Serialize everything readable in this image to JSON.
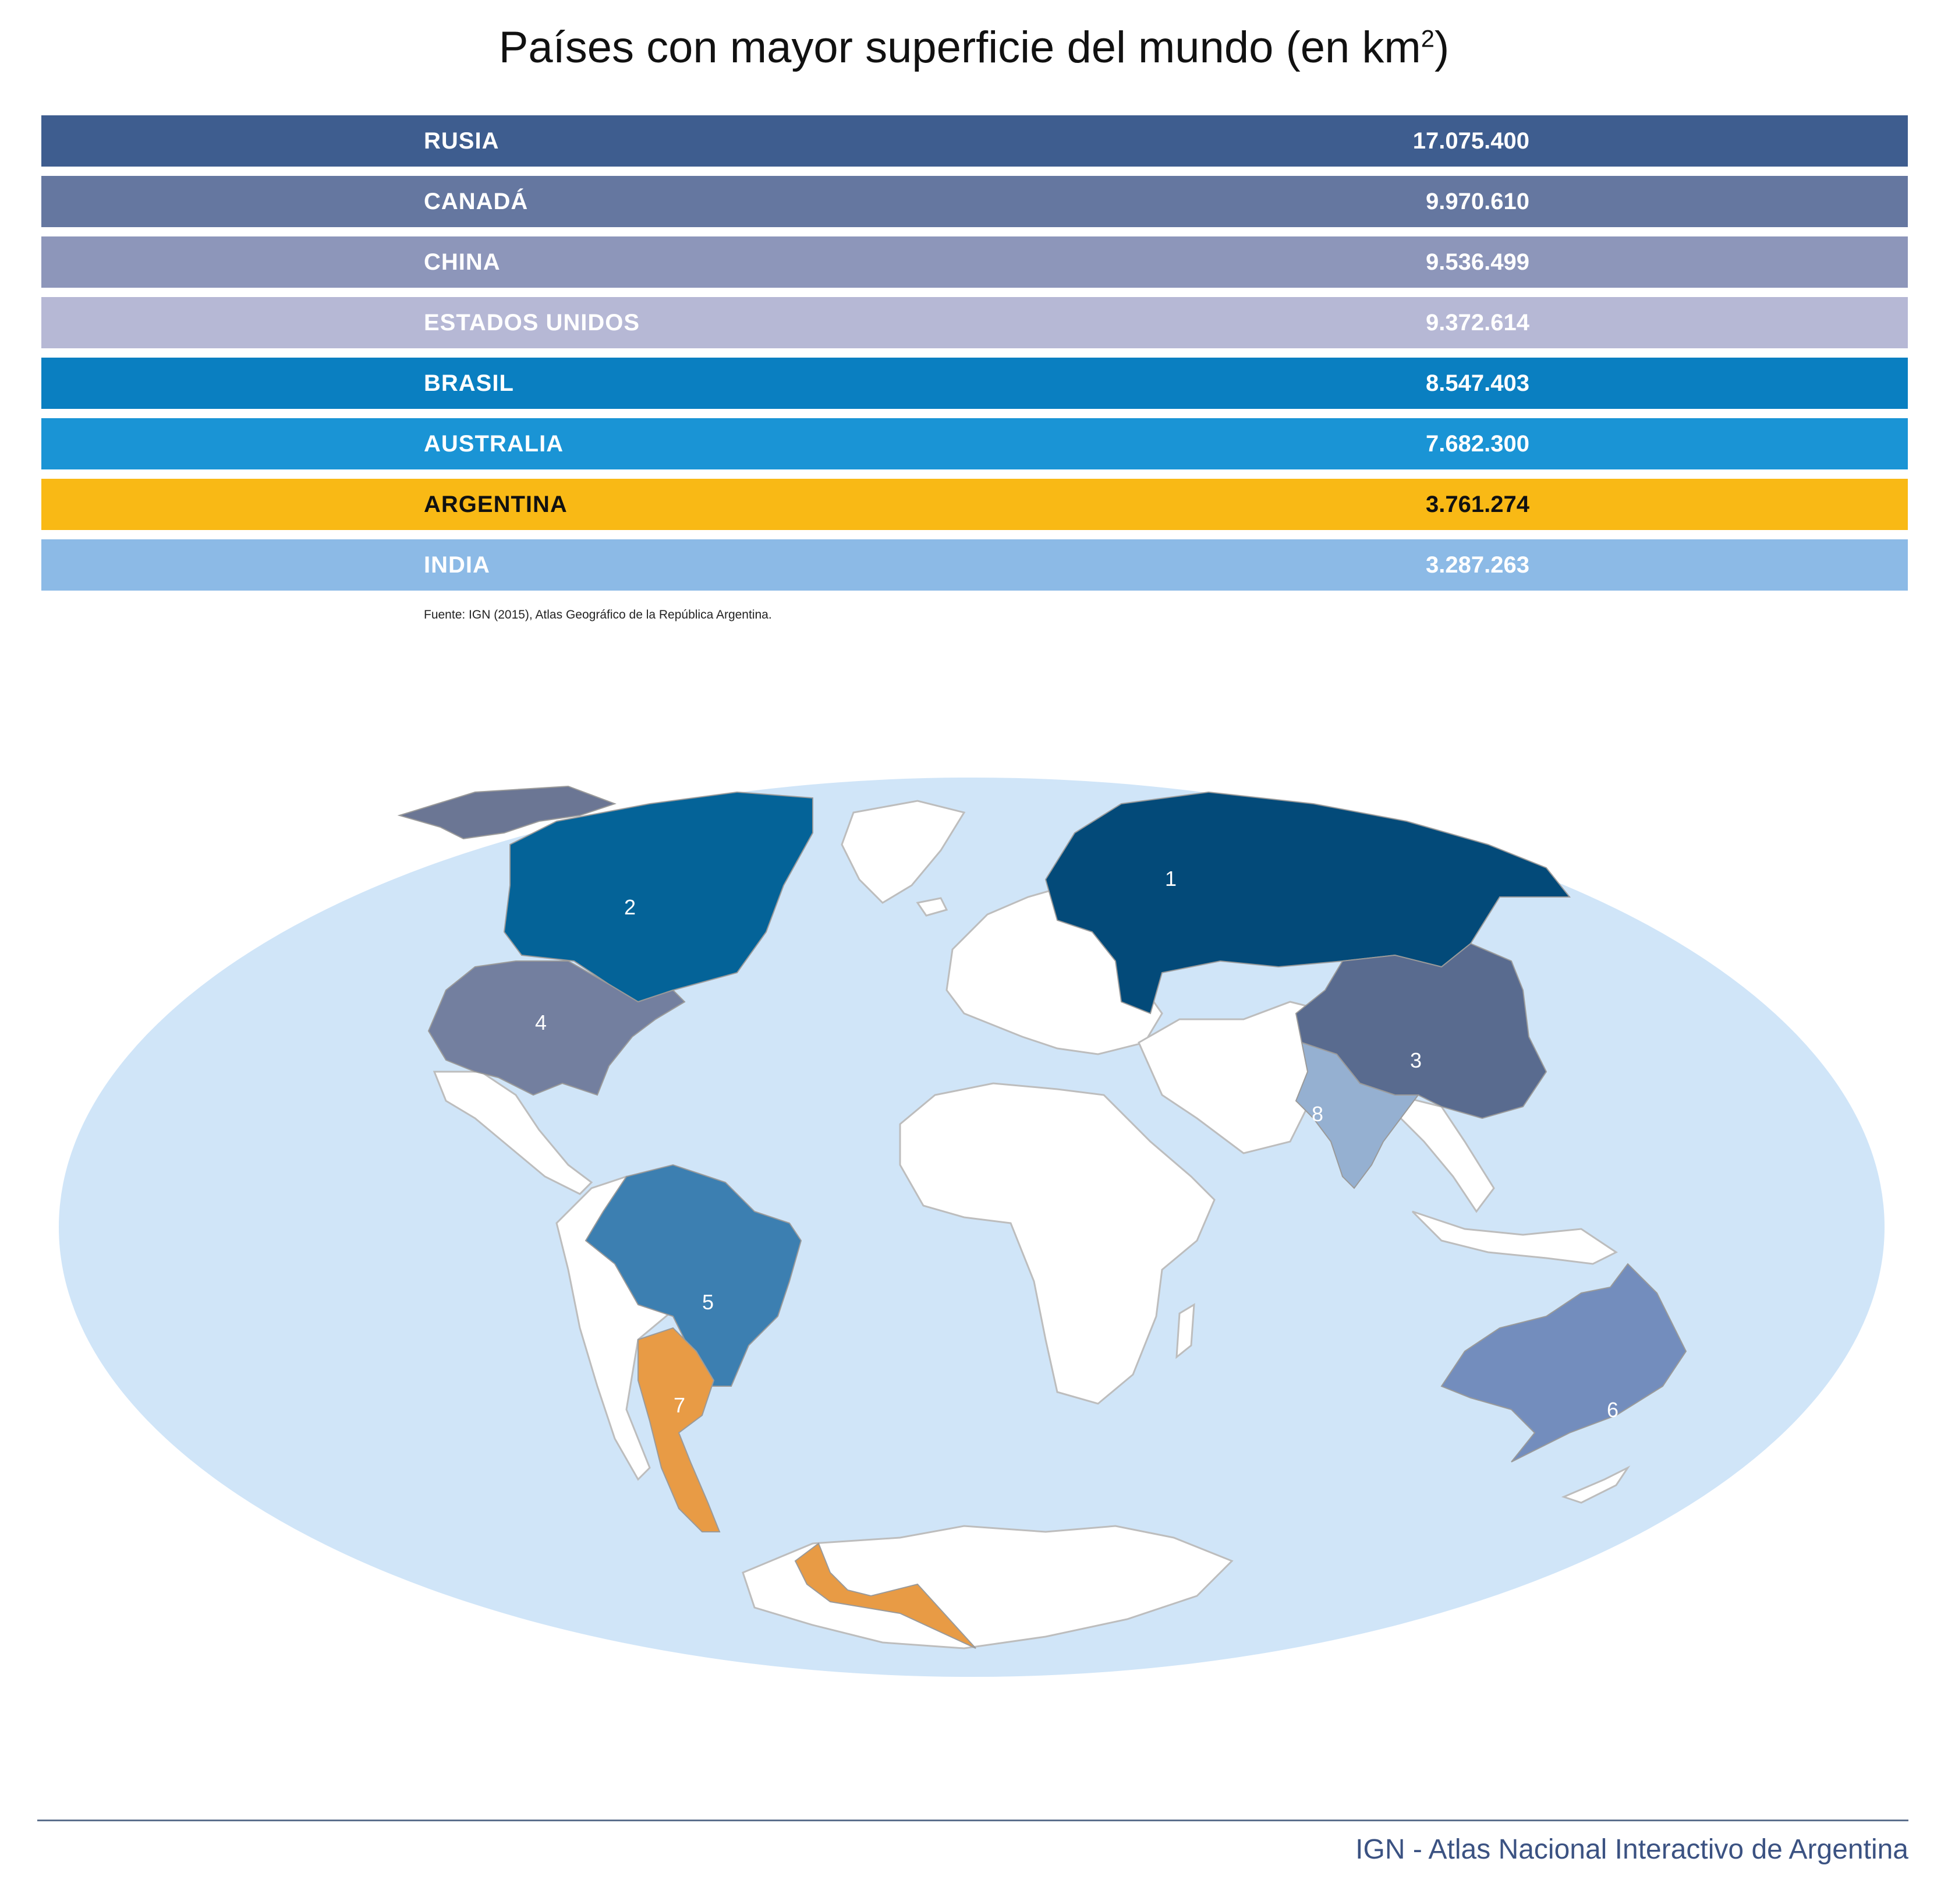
{
  "title": {
    "text": "Países con mayor superficie del mundo (en km",
    "sup": "2",
    "close": ")"
  },
  "table": {
    "rows": [
      {
        "label": "RUSIA",
        "value": "17.075.400",
        "color": "#3e5d8f",
        "text_color": "#ffffff",
        "map_number": "1"
      },
      {
        "label": "CANADÁ",
        "value": "9.970.610",
        "color": "#6577a0",
        "text_color": "#ffffff",
        "map_number": "2"
      },
      {
        "label": "CHINA",
        "value": "9.536.499",
        "color": "#8d96ba",
        "text_color": "#ffffff",
        "map_number": "3"
      },
      {
        "label": "ESTADOS UNIDOS",
        "value": "9.372.614",
        "color": "#b6b8d5",
        "text_color": "#ffffff",
        "map_number": "4"
      },
      {
        "label": "BRASIL",
        "value": "8.547.403",
        "color": "#0a7fc1",
        "text_color": "#ffffff",
        "map_number": "5"
      },
      {
        "label": "AUSTRALIA",
        "value": "7.682.300",
        "color": "#1a94d5",
        "text_color": "#ffffff",
        "map_number": "6"
      },
      {
        "label": "ARGENTINA",
        "value": "3.761.274",
        "color": "#f9b915",
        "text_color": "#111111",
        "map_number": "7"
      },
      {
        "label": "INDIA",
        "value": "3.287.263",
        "color": "#8cbae6",
        "text_color": "#ffffff",
        "map_number": "8"
      }
    ]
  },
  "source": "Fuente: IGN (2015), Atlas Geográfico de la República Argentina.",
  "map": {
    "ocean_color": "#d0e5f8",
    "land_color": "#ffffff",
    "border_color": "#bdbdbd",
    "country_fills": {
      "rusia": "#034a79",
      "canada": "#046398",
      "china": "#596b8f",
      "usa": "#737f9f",
      "brasil": "#3c7fb1",
      "australia": "#738dbd",
      "argentina": "#e89b45",
      "india": "#95b0d1",
      "alaska": "#6b7694"
    }
  },
  "footer": "IGN - Atlas Nacional Interactivo de Argentina"
}
